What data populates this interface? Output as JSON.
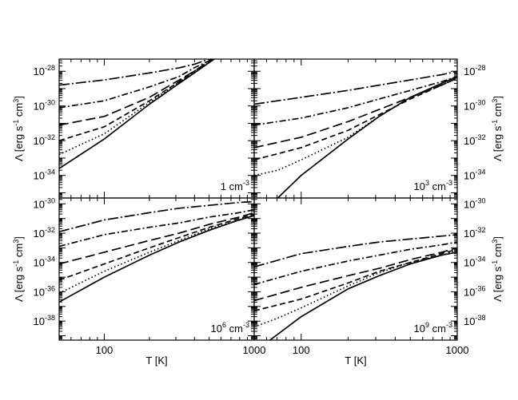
{
  "chart_data": {
    "type": "line",
    "xlabel": "T [K]",
    "ylabel": "Λ [erg s⁻¹ cm³]",
    "ylabel_parts": {
      "pre": "Λ [erg s",
      "sup1": "-1",
      "mid": " cm",
      "sup2": "3",
      "post": "]"
    },
    "xscale": "log",
    "yscale": "log",
    "xlim": [
      50,
      1000
    ],
    "x_ticks": [
      {
        "value": 100,
        "label": "100"
      },
      {
        "value": 1000,
        "label": "1000"
      }
    ],
    "grid": false,
    "legend": "none",
    "panels": [
      {
        "id": "p1",
        "col": 0,
        "row": 0,
        "density_label": {
          "base": "1 cm",
          "exp": "-3",
          "base_pre": "",
          "base_sup": ""
        },
        "ylim_exp": [
          -35.3,
          -27.3
        ],
        "y_ticks": [
          -34,
          -32,
          -30,
          -28
        ],
        "y_label_side": "left",
        "series": [
          {
            "style": "solid",
            "log10_y_at_log10_T": [
              [
                1.699,
                -33.6
              ],
              [
                2.0,
                -31.9
              ],
              [
                2.301,
                -29.9
              ],
              [
                2.5,
                -28.7
              ],
              [
                2.6,
                -28.1
              ],
              [
                2.7,
                -27.5
              ],
              [
                2.8,
                -26.9
              ],
              [
                2.9,
                -26.3
              ],
              [
                3.0,
                -25.7
              ]
            ]
          },
          {
            "style": "dotted",
            "log10_y_at_log10_T": [
              [
                1.699,
                -32.8
              ],
              [
                2.0,
                -31.6
              ],
              [
                2.301,
                -29.8
              ],
              [
                2.5,
                -28.6
              ],
              [
                2.6,
                -28.1
              ],
              [
                2.7,
                -27.5
              ],
              [
                2.8,
                -26.9
              ],
              [
                3.0,
                -25.7
              ]
            ]
          },
          {
            "style": "dashed",
            "log10_y_at_log10_T": [
              [
                1.699,
                -32.0
              ],
              [
                2.0,
                -31.2
              ],
              [
                2.301,
                -29.7
              ],
              [
                2.5,
                -28.6
              ],
              [
                2.6,
                -28.0
              ],
              [
                2.7,
                -27.5
              ],
              [
                2.8,
                -26.9
              ],
              [
                3.0,
                -25.7
              ]
            ]
          },
          {
            "style": "long-dashed",
            "log10_y_at_log10_T": [
              [
                1.699,
                -31.1
              ],
              [
                2.0,
                -30.6
              ],
              [
                2.301,
                -29.5
              ],
              [
                2.5,
                -28.5
              ],
              [
                2.6,
                -28.0
              ],
              [
                2.7,
                -27.4
              ],
              [
                2.8,
                -26.9
              ],
              [
                3.0,
                -25.7
              ]
            ]
          },
          {
            "style": "dash-dot",
            "log10_y_at_log10_T": [
              [
                1.699,
                -30.1
              ],
              [
                2.0,
                -29.7
              ],
              [
                2.301,
                -28.9
              ],
              [
                2.5,
                -28.3
              ],
              [
                2.6,
                -27.8
              ],
              [
                2.7,
                -27.4
              ],
              [
                2.8,
                -26.9
              ],
              [
                3.0,
                -25.7
              ]
            ]
          },
          {
            "style": "long-dash-dot",
            "log10_y_at_log10_T": [
              [
                1.699,
                -28.8
              ],
              [
                2.0,
                -28.5
              ],
              [
                2.301,
                -28.1
              ],
              [
                2.5,
                -27.8
              ],
              [
                2.6,
                -27.6
              ],
              [
                2.7,
                -27.3
              ],
              [
                2.8,
                -26.9
              ],
              [
                3.0,
                -25.7
              ]
            ]
          }
        ]
      },
      {
        "id": "p2",
        "col": 1,
        "row": 0,
        "density_label": {
          "base": " cm",
          "exp": "-3",
          "base_pre": "10",
          "base_sup": "3"
        },
        "ylim_exp": [
          -35.3,
          -27.3
        ],
        "y_ticks": [
          -34,
          -32,
          -30,
          -28
        ],
        "y_label_side": "right",
        "series": [
          {
            "style": "solid",
            "log10_y_at_log10_T": [
              [
                1.85,
                -35.3
              ],
              [
                2.0,
                -34.0
              ],
              [
                2.301,
                -31.9
              ],
              [
                2.5,
                -30.6
              ],
              [
                2.7,
                -29.5
              ],
              [
                2.9,
                -28.7
              ],
              [
                3.0,
                -28.3
              ]
            ]
          },
          {
            "style": "dotted",
            "log10_y_at_log10_T": [
              [
                1.699,
                -34.0
              ],
              [
                1.85,
                -33.7
              ],
              [
                2.0,
                -33.1
              ],
              [
                2.301,
                -31.8
              ],
              [
                2.5,
                -30.6
              ],
              [
                2.7,
                -29.5
              ],
              [
                2.9,
                -28.8
              ],
              [
                3.0,
                -28.4
              ]
            ]
          },
          {
            "style": "dashed",
            "log10_y_at_log10_T": [
              [
                1.699,
                -33.1
              ],
              [
                2.0,
                -32.4
              ],
              [
                2.301,
                -31.4
              ],
              [
                2.5,
                -30.5
              ],
              [
                2.7,
                -29.6
              ],
              [
                2.9,
                -28.8
              ],
              [
                3.0,
                -28.4
              ]
            ]
          },
          {
            "style": "long-dashed",
            "log10_y_at_log10_T": [
              [
                1.699,
                -32.4
              ],
              [
                2.0,
                -31.8
              ],
              [
                2.301,
                -30.9
              ],
              [
                2.5,
                -30.2
              ],
              [
                2.7,
                -29.5
              ],
              [
                2.9,
                -28.8
              ],
              [
                3.0,
                -28.4
              ]
            ]
          },
          {
            "style": "dash-dot",
            "log10_y_at_log10_T": [
              [
                1.699,
                -31.1
              ],
              [
                2.0,
                -30.7
              ],
              [
                2.301,
                -30.1
              ],
              [
                2.5,
                -29.6
              ],
              [
                2.7,
                -29.1
              ],
              [
                2.9,
                -28.6
              ],
              [
                3.0,
                -28.3
              ]
            ]
          },
          {
            "style": "long-dash-dot",
            "log10_y_at_log10_T": [
              [
                1.699,
                -29.9
              ],
              [
                2.0,
                -29.5
              ],
              [
                2.301,
                -29.1
              ],
              [
                2.5,
                -28.8
              ],
              [
                2.7,
                -28.5
              ],
              [
                2.9,
                -28.2
              ],
              [
                3.0,
                -28.0
              ]
            ]
          }
        ]
      },
      {
        "id": "p3",
        "col": 0,
        "row": 1,
        "density_label": {
          "base": " cm",
          "exp": "-3",
          "base_pre": "10",
          "base_sup": "6"
        },
        "ylim_exp": [
          -39.3,
          -29.6
        ],
        "y_ticks": [
          -38,
          -36,
          -34,
          -32,
          -30
        ],
        "y_label_side": "left",
        "series": [
          {
            "style": "solid",
            "log10_y_at_log10_T": [
              [
                1.699,
                -36.7
              ],
              [
                2.0,
                -35.0
              ],
              [
                2.301,
                -33.5
              ],
              [
                2.5,
                -32.6
              ],
              [
                2.7,
                -31.8
              ],
              [
                2.9,
                -31.1
              ],
              [
                3.0,
                -30.8
              ]
            ]
          },
          {
            "style": "dotted",
            "log10_y_at_log10_T": [
              [
                1.699,
                -36.1
              ],
              [
                2.0,
                -34.6
              ],
              [
                2.301,
                -33.3
              ],
              [
                2.5,
                -32.5
              ],
              [
                2.7,
                -31.7
              ],
              [
                2.9,
                -31.1
              ],
              [
                3.0,
                -30.8
              ]
            ]
          },
          {
            "style": "dashed",
            "log10_y_at_log10_T": [
              [
                1.699,
                -35.2
              ],
              [
                2.0,
                -34.1
              ],
              [
                2.301,
                -33.0
              ],
              [
                2.5,
                -32.3
              ],
              [
                2.7,
                -31.6
              ],
              [
                2.9,
                -31.0
              ],
              [
                3.0,
                -30.7
              ]
            ]
          },
          {
            "style": "long-dashed",
            "log10_y_at_log10_T": [
              [
                1.699,
                -34.1
              ],
              [
                2.0,
                -33.3
              ],
              [
                2.301,
                -32.5
              ],
              [
                2.5,
                -32.0
              ],
              [
                2.7,
                -31.4
              ],
              [
                2.9,
                -30.9
              ],
              [
                3.0,
                -30.6
              ]
            ]
          },
          {
            "style": "dash-dot",
            "log10_y_at_log10_T": [
              [
                1.699,
                -32.9
              ],
              [
                2.0,
                -32.1
              ],
              [
                2.301,
                -31.6
              ],
              [
                2.5,
                -31.3
              ],
              [
                2.7,
                -30.9
              ],
              [
                2.9,
                -30.6
              ],
              [
                3.0,
                -30.4
              ]
            ]
          },
          {
            "style": "long-dash-dot",
            "log10_y_at_log10_T": [
              [
                1.699,
                -31.9
              ],
              [
                2.0,
                -31.1
              ],
              [
                2.301,
                -30.6
              ],
              [
                2.5,
                -30.3
              ],
              [
                2.7,
                -30.1
              ],
              [
                2.9,
                -29.9
              ],
              [
                3.0,
                -29.85
              ]
            ]
          }
        ]
      },
      {
        "id": "p4",
        "col": 1,
        "row": 1,
        "density_label": {
          "base": " cm",
          "exp": "-3",
          "base_pre": "10",
          "base_sup": "9"
        },
        "ylim_exp": [
          -39.3,
          -29.6
        ],
        "y_ticks": [
          -38,
          -36,
          -34,
          -32,
          -30
        ],
        "y_label_side": "right",
        "series": [
          {
            "style": "solid",
            "log10_y_at_log10_T": [
              [
                1.8,
                -39.3
              ],
              [
                2.0,
                -37.7
              ],
              [
                2.301,
                -35.8
              ],
              [
                2.5,
                -34.9
              ],
              [
                2.7,
                -34.1
              ],
              [
                2.9,
                -33.5
              ],
              [
                3.0,
                -33.3
              ]
            ]
          },
          {
            "style": "dotted",
            "log10_y_at_log10_T": [
              [
                1.699,
                -38.4
              ],
              [
                1.85,
                -37.8
              ],
              [
                2.0,
                -37.1
              ],
              [
                2.301,
                -35.6
              ],
              [
                2.5,
                -34.7
              ],
              [
                2.7,
                -34.0
              ],
              [
                2.9,
                -33.5
              ],
              [
                3.0,
                -33.2
              ]
            ]
          },
          {
            "style": "dashed",
            "log10_y_at_log10_T": [
              [
                1.699,
                -37.3
              ],
              [
                2.0,
                -36.5
              ],
              [
                2.301,
                -35.4
              ],
              [
                2.5,
                -34.6
              ],
              [
                2.7,
                -34.0
              ],
              [
                2.9,
                -33.4
              ],
              [
                3.0,
                -33.1
              ]
            ]
          },
          {
            "style": "long-dashed",
            "log10_y_at_log10_T": [
              [
                1.699,
                -36.6
              ],
              [
                2.0,
                -35.7
              ],
              [
                2.301,
                -34.9
              ],
              [
                2.5,
                -34.4
              ],
              [
                2.7,
                -33.8
              ],
              [
                2.9,
                -33.3
              ],
              [
                3.0,
                -33.0
              ]
            ]
          },
          {
            "style": "dash-dot",
            "log10_y_at_log10_T": [
              [
                1.699,
                -35.5
              ],
              [
                2.0,
                -34.6
              ],
              [
                2.301,
                -33.9
              ],
              [
                2.5,
                -33.5
              ],
              [
                2.7,
                -33.1
              ],
              [
                2.9,
                -32.8
              ],
              [
                3.0,
                -32.6
              ]
            ]
          },
          {
            "style": "long-dash-dot",
            "log10_y_at_log10_T": [
              [
                1.699,
                -34.3
              ],
              [
                2.0,
                -33.4
              ],
              [
                2.301,
                -32.9
              ],
              [
                2.5,
                -32.6
              ],
              [
                2.7,
                -32.4
              ],
              [
                2.9,
                -32.2
              ],
              [
                3.0,
                -32.1
              ]
            ]
          }
        ]
      }
    ]
  }
}
